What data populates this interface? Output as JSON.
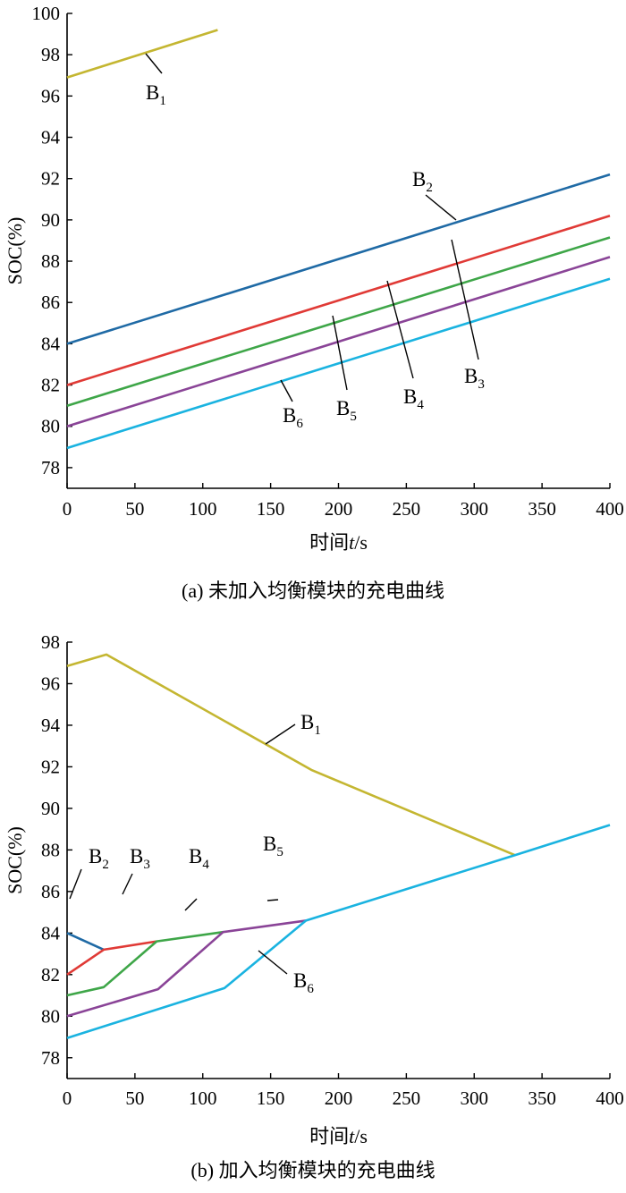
{
  "chart_data": [
    {
      "type": "line",
      "caption": "(a) 未加入均衡模块的充电曲线",
      "xlabel_prefix": "时间",
      "xlabel_var": "t",
      "xlabel_unit": "/s",
      "ylabel": "SOC(%)",
      "xlim": [
        0,
        400
      ],
      "ylim": [
        77,
        100
      ],
      "xticks": [
        "0",
        "50",
        "100",
        "150",
        "200",
        "250",
        "300",
        "350",
        "400"
      ],
      "yticks": [
        "78",
        "80",
        "82",
        "84",
        "86",
        "88",
        "90",
        "92",
        "94",
        "96",
        "98",
        "100"
      ],
      "series": [
        {
          "name": "B",
          "sub": "1",
          "color": "#c4b631",
          "points": [
            [
              0,
              96.9
            ],
            [
              111,
              99.2
            ]
          ]
        },
        {
          "name": "B",
          "sub": "2",
          "color": "#1f6aa5",
          "points": [
            [
              0,
              84.0
            ],
            [
              400,
              92.2
            ]
          ]
        },
        {
          "name": "B",
          "sub": "3",
          "color": "#e03a36",
          "points": [
            [
              0,
              82.0
            ],
            [
              400,
              90.2
            ]
          ]
        },
        {
          "name": "B",
          "sub": "4",
          "color": "#3ea648",
          "points": [
            [
              0,
              81.0
            ],
            [
              400,
              89.15
            ]
          ]
        },
        {
          "name": "B",
          "sub": "5",
          "color": "#8a4497",
          "points": [
            [
              0,
              80.0
            ],
            [
              400,
              88.2
            ]
          ]
        },
        {
          "name": "B",
          "sub": "6",
          "color": "#1ab3e0",
          "points": [
            [
              0,
              78.95
            ],
            [
              400,
              87.15
            ]
          ]
        }
      ]
    },
    {
      "type": "line",
      "caption": "(b) 加入均衡模块的充电曲线",
      "xlabel_prefix": "时间",
      "xlabel_var": "t",
      "xlabel_unit": "/s",
      "ylabel": "SOC(%)",
      "xlim": [
        0,
        400
      ],
      "ylim": [
        77,
        98
      ],
      "xticks": [
        "0",
        "50",
        "100",
        "150",
        "200",
        "250",
        "300",
        "350",
        "400"
      ],
      "yticks": [
        "78",
        "80",
        "82",
        "84",
        "86",
        "88",
        "90",
        "92",
        "94",
        "96",
        "98"
      ],
      "series": [
        {
          "name": "B",
          "sub": "1",
          "color": "#c4b631",
          "points": [
            [
              0,
              96.85
            ],
            [
              29,
              97.4
            ],
            [
              180,
              91.85
            ],
            [
              330,
              87.75
            ]
          ]
        },
        {
          "name": "B",
          "sub": "2",
          "color": "#1f6aa5",
          "points": [
            [
              0,
              84.0
            ],
            [
              27,
              83.2
            ]
          ]
        },
        {
          "name": "B",
          "sub": "3",
          "color": "#e03a36",
          "points": [
            [
              0,
              82.0
            ],
            [
              27,
              83.2
            ],
            [
              66,
              83.6
            ]
          ]
        },
        {
          "name": "B",
          "sub": "4",
          "color": "#3ea648",
          "points": [
            [
              0,
              81.0
            ],
            [
              27,
              81.4
            ],
            [
              66,
              83.6
            ],
            [
              115,
              84.05
            ]
          ]
        },
        {
          "name": "B",
          "sub": "5",
          "color": "#8a4497",
          "points": [
            [
              0,
              80.0
            ],
            [
              67,
              81.3
            ],
            [
              115,
              84.05
            ],
            [
              176,
              84.6
            ]
          ]
        },
        {
          "name": "B",
          "sub": "6",
          "color": "#1ab3e0",
          "points": [
            [
              0,
              78.95
            ],
            [
              116,
              81.35
            ],
            [
              176,
              84.6
            ],
            [
              330,
              87.75
            ],
            [
              400,
              89.2
            ]
          ]
        }
      ]
    }
  ]
}
